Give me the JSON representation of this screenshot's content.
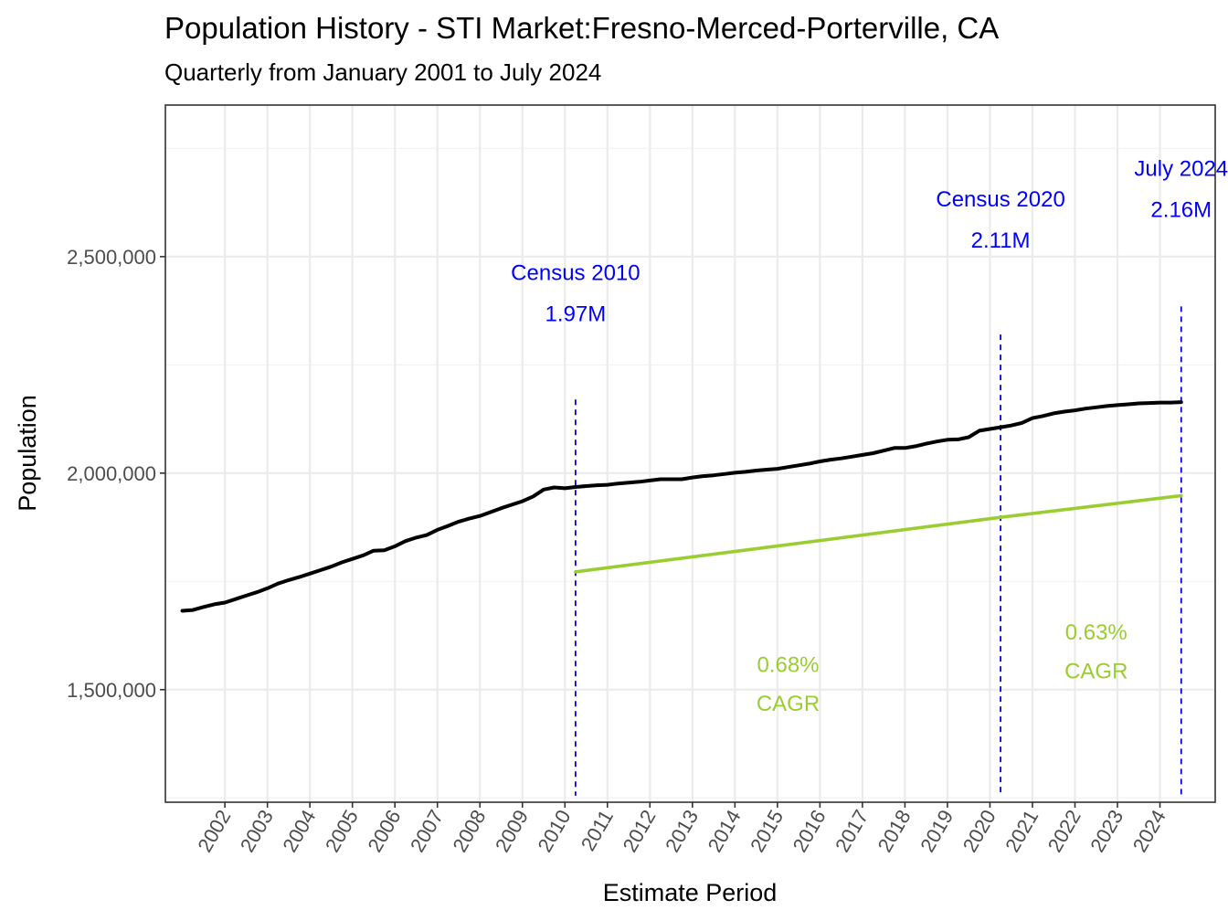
{
  "chart_data": {
    "type": "line",
    "title": "Population History - STI Market:Fresno-Merced-Porterville, CA",
    "subtitle": "Quarterly from January 2001 to July 2024",
    "xlabel": "Estimate Period",
    "ylabel": "Population",
    "x_ticks": [
      "2002",
      "2003",
      "2004",
      "2005",
      "2006",
      "2007",
      "2008",
      "2009",
      "2010",
      "2011",
      "2012",
      "2013",
      "2014",
      "2015",
      "2016",
      "2017",
      "2018",
      "2019",
      "2020",
      "2021",
      "2022",
      "2023",
      "2024"
    ],
    "y_ticks": [
      {
        "value": 1500000,
        "label": "1,500,000"
      },
      {
        "value": 2000000,
        "label": "2,000,000"
      },
      {
        "value": 2500000,
        "label": "2,500,000"
      }
    ],
    "xlim": [
      2000.6,
      2025.3
    ],
    "ylim": [
      1240000,
      2850000
    ],
    "grid": true,
    "legend": "none",
    "series": [
      {
        "name": "Population",
        "color": "#000000",
        "points": [
          [
            2001.0,
            1682000
          ],
          [
            2001.25,
            1684000
          ],
          [
            2001.5,
            1691000
          ],
          [
            2001.75,
            1697000
          ],
          [
            2002.0,
            1701000
          ],
          [
            2002.25,
            1709000
          ],
          [
            2002.5,
            1717000
          ],
          [
            2002.75,
            1725000
          ],
          [
            2003.0,
            1734000
          ],
          [
            2003.25,
            1745000
          ],
          [
            2003.5,
            1753000
          ],
          [
            2003.75,
            1760000
          ],
          [
            2004.0,
            1768000
          ],
          [
            2004.25,
            1776000
          ],
          [
            2004.5,
            1784000
          ],
          [
            2004.75,
            1794000
          ],
          [
            2005.0,
            1802000
          ],
          [
            2005.25,
            1810000
          ],
          [
            2005.5,
            1821000
          ],
          [
            2005.75,
            1822000
          ],
          [
            2006.0,
            1831000
          ],
          [
            2006.25,
            1843000
          ],
          [
            2006.5,
            1851000
          ],
          [
            2006.75,
            1857000
          ],
          [
            2007.0,
            1869000
          ],
          [
            2007.25,
            1878000
          ],
          [
            2007.5,
            1888000
          ],
          [
            2007.75,
            1895000
          ],
          [
            2008.0,
            1901000
          ],
          [
            2008.25,
            1910000
          ],
          [
            2008.5,
            1919000
          ],
          [
            2008.75,
            1927000
          ],
          [
            2009.0,
            1935000
          ],
          [
            2009.25,
            1946000
          ],
          [
            2009.5,
            1962000
          ],
          [
            2009.75,
            1967000
          ],
          [
            2010.0,
            1965000
          ],
          [
            2010.25,
            1968000
          ],
          [
            2010.5,
            1970000
          ],
          [
            2010.75,
            1972000
          ],
          [
            2011.0,
            1973000
          ],
          [
            2011.25,
            1976000
          ],
          [
            2011.5,
            1978000
          ],
          [
            2011.75,
            1980000
          ],
          [
            2012.0,
            1983000
          ],
          [
            2012.25,
            1986000
          ],
          [
            2012.5,
            1986000
          ],
          [
            2012.75,
            1986000
          ],
          [
            2013.0,
            1990000
          ],
          [
            2013.25,
            1993000
          ],
          [
            2013.5,
            1995000
          ],
          [
            2013.75,
            1998000
          ],
          [
            2014.0,
            2001000
          ],
          [
            2014.25,
            2003000
          ],
          [
            2014.5,
            2006000
          ],
          [
            2014.75,
            2008000
          ],
          [
            2015.0,
            2010000
          ],
          [
            2015.25,
            2014000
          ],
          [
            2015.5,
            2018000
          ],
          [
            2015.75,
            2022000
          ],
          [
            2016.0,
            2027000
          ],
          [
            2016.25,
            2031000
          ],
          [
            2016.5,
            2034000
          ],
          [
            2016.75,
            2038000
          ],
          [
            2017.0,
            2042000
          ],
          [
            2017.25,
            2046000
          ],
          [
            2017.5,
            2052000
          ],
          [
            2017.75,
            2058000
          ],
          [
            2018.0,
            2058000
          ],
          [
            2018.25,
            2062000
          ],
          [
            2018.5,
            2068000
          ],
          [
            2018.75,
            2073000
          ],
          [
            2019.0,
            2077000
          ],
          [
            2019.25,
            2078000
          ],
          [
            2019.5,
            2083000
          ],
          [
            2019.75,
            2098000
          ],
          [
            2020.0,
            2102000
          ],
          [
            2020.25,
            2106000
          ],
          [
            2020.5,
            2110000
          ],
          [
            2020.75,
            2116000
          ],
          [
            2021.0,
            2127000
          ],
          [
            2021.25,
            2132000
          ],
          [
            2021.5,
            2138000
          ],
          [
            2021.75,
            2142000
          ],
          [
            2022.0,
            2145000
          ],
          [
            2022.25,
            2149000
          ],
          [
            2022.5,
            2152000
          ],
          [
            2022.75,
            2155000
          ],
          [
            2023.0,
            2157000
          ],
          [
            2023.25,
            2159000
          ],
          [
            2023.5,
            2161000
          ],
          [
            2023.75,
            2162000
          ],
          [
            2024.0,
            2163000
          ],
          [
            2024.25,
            2163000
          ],
          [
            2024.5,
            2164000
          ]
        ]
      },
      {
        "name": "CAGR trend",
        "color": "#9acd32",
        "points": [
          [
            2010.25,
            1772000
          ],
          [
            2020.25,
            1898000
          ],
          [
            2024.5,
            1948000
          ]
        ]
      }
    ],
    "reference_lines": [
      {
        "x": 2010.25,
        "y_top": 2170000,
        "color": "#0000ff"
      },
      {
        "x": 2020.25,
        "y_top": 2320000,
        "color": "#0000ff"
      },
      {
        "x": 2024.5,
        "y_top": 2385000,
        "color": "#0000ff"
      }
    ],
    "annotations": [
      {
        "x": 2010.25,
        "y1": 2465000,
        "y2": 2370000,
        "line1": "Census 2010",
        "line2": "1.97M",
        "color": "#0000ff"
      },
      {
        "x": 2020.25,
        "y1": 2635000,
        "y2": 2540000,
        "line1": "Census 2020",
        "line2": "2.11M",
        "color": "#0000ff"
      },
      {
        "x": 2024.5,
        "y1": 2705000,
        "y2": 2610000,
        "line1": "July 2024",
        "line2": "2.16M",
        "color": "#0000ff"
      },
      {
        "x": 2015.25,
        "y1": 1560000,
        "y2": 1470000,
        "line1": "0.68%",
        "line2": " CAGR",
        "color": "#9acd32"
      },
      {
        "x": 2022.5,
        "y1": 1635000,
        "y2": 1545000,
        "line1": "0.63%",
        "line2": " CAGR",
        "color": "#9acd32"
      }
    ]
  }
}
